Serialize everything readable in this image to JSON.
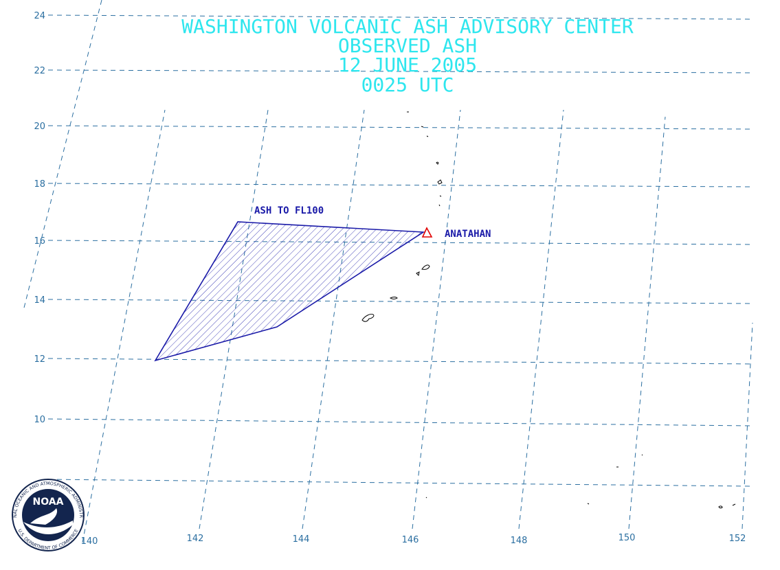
{
  "title": [
    "WASHINGTON VOLCANIC ASH ADVISORY CENTER",
    "OBSERVED ASH",
    "12 JUNE 2005",
    "0025 UTC"
  ],
  "annotations": {
    "ash_area": "ASH TO FL100",
    "volcano": "ANATAHAN"
  },
  "lat_labels": [
    "24",
    "22",
    "20",
    "18",
    "16",
    "14",
    "12",
    "10"
  ],
  "lon_labels": [
    "140",
    "142",
    "144",
    "146",
    "148",
    "150",
    "152"
  ],
  "logo": {
    "text": "NOAA",
    "ring_top": "NATIONAL OCEANIC AND ATMOSPHERIC ADMINISTRATION",
    "ring_bottom": "U.S. DEPARTMENT OF COMMERCE"
  }
}
